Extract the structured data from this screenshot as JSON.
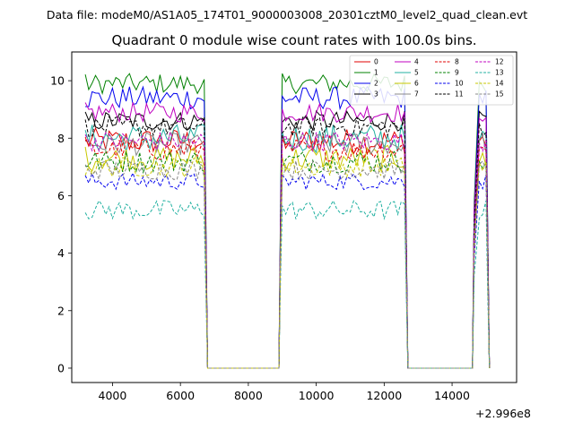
{
  "header": {
    "data_file": "Data file: modeM0/AS1A05_174T01_9000003008_20301cztM0_level2_quad_clean.evt"
  },
  "chart_data": {
    "type": "line",
    "title": "Quadrant 0 module wise count rates with 100.0s bins.",
    "xlabel": "",
    "ylabel": "",
    "x_offset_label": "+2.996e8",
    "xlim": [
      2800,
      15900
    ],
    "ylim": [
      -0.5,
      11.0
    ],
    "x_ticks": [
      4000,
      6000,
      8000,
      10000,
      12000,
      14000
    ],
    "x_tick_labels": [
      "4000",
      "6000",
      "8000",
      "10000",
      "12000",
      "14000"
    ],
    "y_ticks": [
      0,
      2,
      4,
      6,
      8,
      10
    ],
    "y_tick_labels": [
      "0",
      "2",
      "4",
      "6",
      "8",
      "10"
    ],
    "legend_position": "top-right",
    "segments": [
      {
        "start": 3200,
        "end": 6700,
        "fall_end": 6800,
        "zero_end": 8900,
        "rise_end": 9000
      },
      {
        "start": 9000,
        "end": 12600,
        "fall_end": 12700,
        "zero_end": 14600,
        "rise_end": 14700
      },
      {
        "start": 14800,
        "end": 15000,
        "fall_end": 15100,
        "zero_end": null,
        "rise_end": null
      }
    ],
    "series": [
      {
        "name": "0",
        "color": "#e00000",
        "dash": "solid",
        "mean": 7.9,
        "noise": 0.45
      },
      {
        "name": "1",
        "color": "#008000",
        "dash": "solid",
        "mean": 9.9,
        "noise": 0.35
      },
      {
        "name": "2",
        "color": "#0000ee",
        "dash": "solid",
        "mean": 9.4,
        "noise": 0.4
      },
      {
        "name": "3",
        "color": "#000000",
        "dash": "solid",
        "mean": 8.6,
        "noise": 0.35
      },
      {
        "name": "4",
        "color": "#c000c0",
        "dash": "solid",
        "mean": 8.9,
        "noise": 0.35
      },
      {
        "name": "5",
        "color": "#20b0a0",
        "dash": "solid",
        "mean": 8.0,
        "noise": 0.5
      },
      {
        "name": "6",
        "color": "#c8c800",
        "dash": "solid",
        "mean": 7.3,
        "noise": 0.45
      },
      {
        "name": "7",
        "color": "#888888",
        "dash": "solid",
        "mean": 7.8,
        "noise": 0.4
      },
      {
        "name": "8",
        "color": "#e00000",
        "dash": "dashed",
        "mean": 7.6,
        "noise": 0.4
      },
      {
        "name": "9",
        "color": "#008000",
        "dash": "dashed",
        "mean": 7.2,
        "noise": 0.4
      },
      {
        "name": "10",
        "color": "#0000ee",
        "dash": "dashed",
        "mean": 6.5,
        "noise": 0.3
      },
      {
        "name": "11",
        "color": "#000000",
        "dash": "dashed",
        "mean": 8.4,
        "noise": 0.35
      },
      {
        "name": "12",
        "color": "#c000c0",
        "dash": "dashed",
        "mean": 7.9,
        "noise": 0.35
      },
      {
        "name": "13",
        "color": "#20b0a0",
        "dash": "dashed",
        "mean": 5.5,
        "noise": 0.35
      },
      {
        "name": "14",
        "color": "#c8c800",
        "dash": "dashed",
        "mean": 7.0,
        "noise": 0.35
      },
      {
        "name": "15",
        "color": "#888888",
        "dash": "dashed",
        "mean": 6.9,
        "noise": 0.35
      }
    ]
  }
}
